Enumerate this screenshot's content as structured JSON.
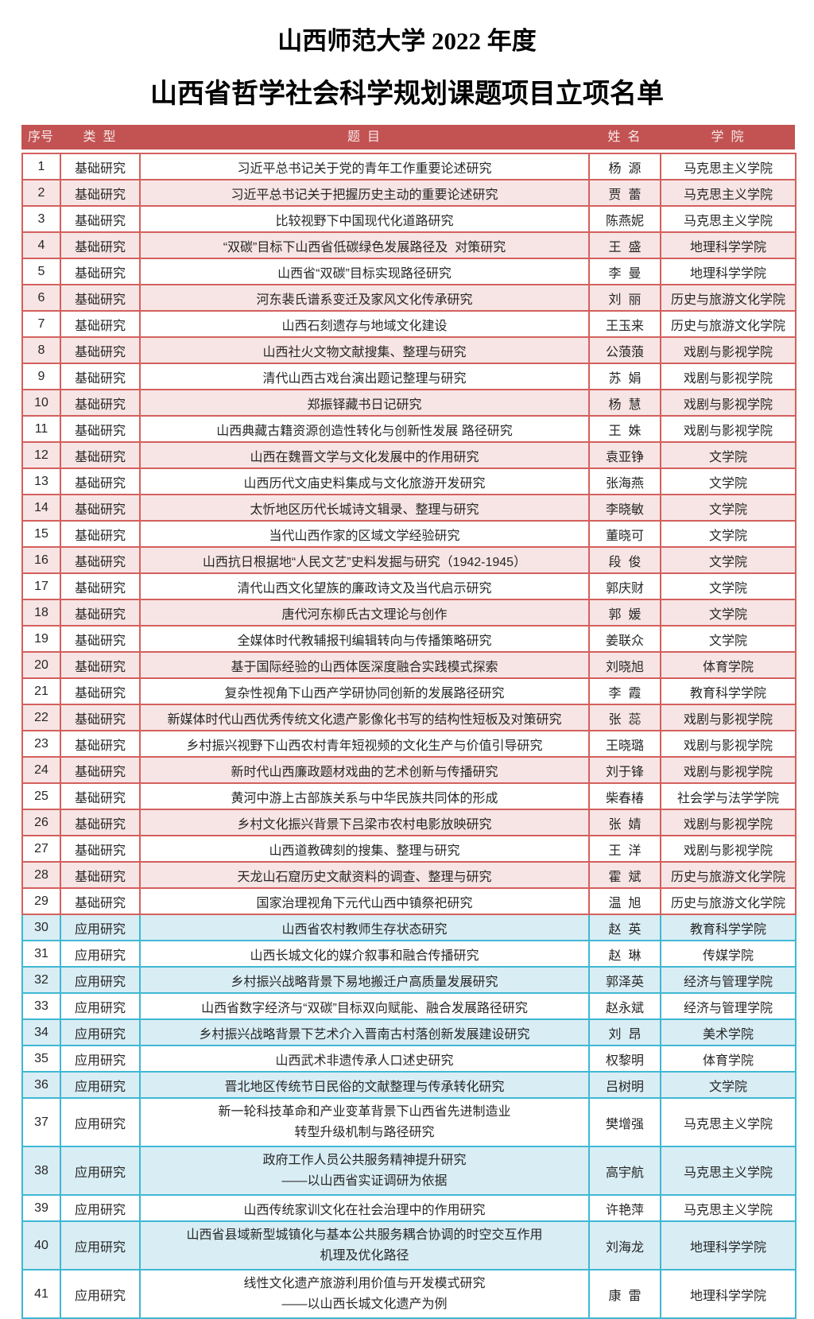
{
  "page": {
    "title_line1": "山西师范大学 2022 年度",
    "title_line2": "山西省哲学社会科学规划课题项目立项名单"
  },
  "colors": {
    "header_bg": "#C25352",
    "header_text": "#F7E8E8",
    "basic_border": "#D3605D",
    "basic_row_tint": "#F7E5E5",
    "applied_border": "#3FB8D3",
    "applied_row_tint": "#D9EDF4"
  },
  "table": {
    "columns": [
      "序号",
      "类  型",
      "题  目",
      "姓  名",
      "学  院"
    ],
    "type_labels": {
      "basic": "基础研究",
      "applied": "应用研究"
    },
    "rows": [
      {
        "no": "1",
        "type": "基础研究",
        "title_lines": [
          "习近平总书记关于党的青年工作重要论述研究"
        ],
        "name": "杨  源",
        "college": "马克思主义学院"
      },
      {
        "no": "2",
        "type": "基础研究",
        "title_lines": [
          "习近平总书记关于把握历史主动的重要论述研究"
        ],
        "name": "贾  蕾",
        "college": "马克思主义学院"
      },
      {
        "no": "3",
        "type": "基础研究",
        "title_lines": [
          "比较视野下中国现代化道路研究"
        ],
        "name": "陈燕妮",
        "college": "马克思主义学院"
      },
      {
        "no": "4",
        "type": "基础研究",
        "title_lines": [
          "“双碳”目标下山西省低碳绿色发展路径及  对策研究"
        ],
        "name": "王  盛",
        "college": "地理科学学院"
      },
      {
        "no": "5",
        "type": "基础研究",
        "title_lines": [
          "山西省“双碳”目标实现路径研究"
        ],
        "name": "李  曼",
        "college": "地理科学学院"
      },
      {
        "no": "6",
        "type": "基础研究",
        "title_lines": [
          "河东裴氏谱系变迁及家风文化传承研究"
        ],
        "name": "刘  丽",
        "college": "历史与旅游文化学院"
      },
      {
        "no": "7",
        "type": "基础研究",
        "title_lines": [
          "山西石刻遗存与地域文化建设"
        ],
        "name": "王玉来",
        "college": "历史与旅游文化学院"
      },
      {
        "no": "8",
        "type": "基础研究",
        "title_lines": [
          "山西社火文物文献搜集、整理与研究"
        ],
        "name": "公蒗蒗",
        "college": "戏剧与影视学院"
      },
      {
        "no": "9",
        "type": "基础研究",
        "title_lines": [
          "清代山西古戏台演出题记整理与研究"
        ],
        "name": "苏  娟",
        "college": "戏剧与影视学院"
      },
      {
        "no": "10",
        "type": "基础研究",
        "title_lines": [
          "郑振铎藏书日记研究"
        ],
        "name": "杨  慧",
        "college": "戏剧与影视学院"
      },
      {
        "no": "11",
        "type": "基础研究",
        "title_lines": [
          "山西典藏古籍资源创造性转化与创新性发展 路径研究"
        ],
        "name": "王  姝",
        "college": "戏剧与影视学院"
      },
      {
        "no": "12",
        "type": "基础研究",
        "title_lines": [
          "山西在魏晋文学与文化发展中的作用研究"
        ],
        "name": "袁亚铮",
        "college": "文学院"
      },
      {
        "no": "13",
        "type": "基础研究",
        "title_lines": [
          "山西历代文庙史料集成与文化旅游开发研究"
        ],
        "name": "张海燕",
        "college": "文学院"
      },
      {
        "no": "14",
        "type": "基础研究",
        "title_lines": [
          "太忻地区历代长城诗文辑录、整理与研究"
        ],
        "name": "李晓敏",
        "college": "文学院"
      },
      {
        "no": "15",
        "type": "基础研究",
        "title_lines": [
          "当代山西作家的区域文学经验研究"
        ],
        "name": "董晓可",
        "college": "文学院"
      },
      {
        "no": "16",
        "type": "基础研究",
        "title_lines": [
          "山西抗日根据地“人民文艺”史料发掘与研究（1942-1945）"
        ],
        "name": "段  俊",
        "college": "文学院"
      },
      {
        "no": "17",
        "type": "基础研究",
        "title_lines": [
          "清代山西文化望族的廉政诗文及当代启示研究"
        ],
        "name": "郭庆财",
        "college": "文学院"
      },
      {
        "no": "18",
        "type": "基础研究",
        "title_lines": [
          "唐代河东柳氏古文理论与创作"
        ],
        "name": "郭  媛",
        "college": "文学院"
      },
      {
        "no": "19",
        "type": "基础研究",
        "title_lines": [
          "全媒体时代教辅报刊编辑转向与传播策略研究"
        ],
        "name": "姜联众",
        "college": "文学院"
      },
      {
        "no": "20",
        "type": "基础研究",
        "title_lines": [
          "基于国际经验的山西体医深度融合实践模式探索"
        ],
        "name": "刘晓旭",
        "college": "体育学院"
      },
      {
        "no": "21",
        "type": "基础研究",
        "title_lines": [
          "复杂性视角下山西产学研协同创新的发展路径研究"
        ],
        "name": "李  霞",
        "college": "教育科学学院"
      },
      {
        "no": "22",
        "type": "基础研究",
        "title_lines": [
          "新媒体时代山西优秀传统文化遗产影像化书写的结构性短板及对策研究"
        ],
        "name": "张  蕊",
        "college": "戏剧与影视学院"
      },
      {
        "no": "23",
        "type": "基础研究",
        "title_lines": [
          "乡村振兴视野下山西农村青年短视频的文化生产与价值引导研究"
        ],
        "name": "王晓璐",
        "college": "戏剧与影视学院"
      },
      {
        "no": "24",
        "type": "基础研究",
        "title_lines": [
          "新时代山西廉政题材戏曲的艺术创新与传播研究"
        ],
        "name": "刘于锋",
        "college": "戏剧与影视学院"
      },
      {
        "no": "25",
        "type": "基础研究",
        "title_lines": [
          "黄河中游上古部族关系与中华民族共同体的形成"
        ],
        "name": "柴春椿",
        "college": "社会学与法学学院"
      },
      {
        "no": "26",
        "type": "基础研究",
        "title_lines": [
          "乡村文化振兴背景下吕梁市农村电影放映研究"
        ],
        "name": "张  婧",
        "college": "戏剧与影视学院"
      },
      {
        "no": "27",
        "type": "基础研究",
        "title_lines": [
          "山西道教碑刻的搜集、整理与研究"
        ],
        "name": "王  洋",
        "college": "戏剧与影视学院"
      },
      {
        "no": "28",
        "type": "基础研究",
        "title_lines": [
          "天龙山石窟历史文献资料的调查、整理与研究"
        ],
        "name": "霍  斌",
        "college": "历史与旅游文化学院"
      },
      {
        "no": "29",
        "type": "基础研究",
        "title_lines": [
          "国家治理视角下元代山西中镇祭祀研究"
        ],
        "name": "温  旭",
        "college": "历史与旅游文化学院"
      },
      {
        "no": "30",
        "type": "应用研究",
        "title_lines": [
          "山西省农村教师生存状态研究"
        ],
        "name": "赵  英",
        "college": "教育科学学院"
      },
      {
        "no": "31",
        "type": "应用研究",
        "title_lines": [
          "山西长城文化的媒介叙事和融合传播研究"
        ],
        "name": "赵  琳",
        "college": "传媒学院"
      },
      {
        "no": "32",
        "type": "应用研究",
        "title_lines": [
          "乡村振兴战略背景下易地搬迁户高质量发展研究"
        ],
        "name": "郭泽英",
        "college": "经济与管理学院"
      },
      {
        "no": "33",
        "type": "应用研究",
        "title_lines": [
          "山西省数字经济与“双碳”目标双向赋能、融合发展路径研究"
        ],
        "name": "赵永斌",
        "college": "经济与管理学院"
      },
      {
        "no": "34",
        "type": "应用研究",
        "title_lines": [
          "乡村振兴战略背景下艺术介入晋南古村落创新发展建设研究"
        ],
        "name": "刘  昂",
        "college": "美术学院"
      },
      {
        "no": "35",
        "type": "应用研究",
        "title_lines": [
          "山西武术非遗传承人口述史研究"
        ],
        "name": "权黎明",
        "college": "体育学院"
      },
      {
        "no": "36",
        "type": "应用研究",
        "title_lines": [
          "晋北地区传统节日民俗的文献整理与传承转化研究"
        ],
        "name": "吕树明",
        "college": "文学院"
      },
      {
        "no": "37",
        "type": "应用研究",
        "title_lines": [
          "新一轮科技革命和产业变革背景下山西省先进制造业",
          "转型升级机制与路径研究"
        ],
        "name": "樊增强",
        "college": "马克思主义学院"
      },
      {
        "no": "38",
        "type": "应用研究",
        "title_lines": [
          "政府工作人员公共服务精神提升研究",
          "——以山西省实证调研为依据"
        ],
        "name": "高宇航",
        "college": "马克思主义学院"
      },
      {
        "no": "39",
        "type": "应用研究",
        "title_lines": [
          "山西传统家训文化在社会治理中的作用研究"
        ],
        "name": "许艳萍",
        "college": "马克思主义学院"
      },
      {
        "no": "40",
        "type": "应用研究",
        "title_lines": [
          "山西省县域新型城镇化与基本公共服务耦合协调的时空交互作用",
          "机理及优化路径"
        ],
        "name": "刘海龙",
        "college": "地理科学学院"
      },
      {
        "no": "41",
        "type": "应用研究",
        "title_lines": [
          "线性文化遗产旅游利用价值与开发模式研究",
          "——以山西长城文化遗产为例"
        ],
        "name": "康  雷",
        "college": "地理科学学院"
      }
    ]
  }
}
